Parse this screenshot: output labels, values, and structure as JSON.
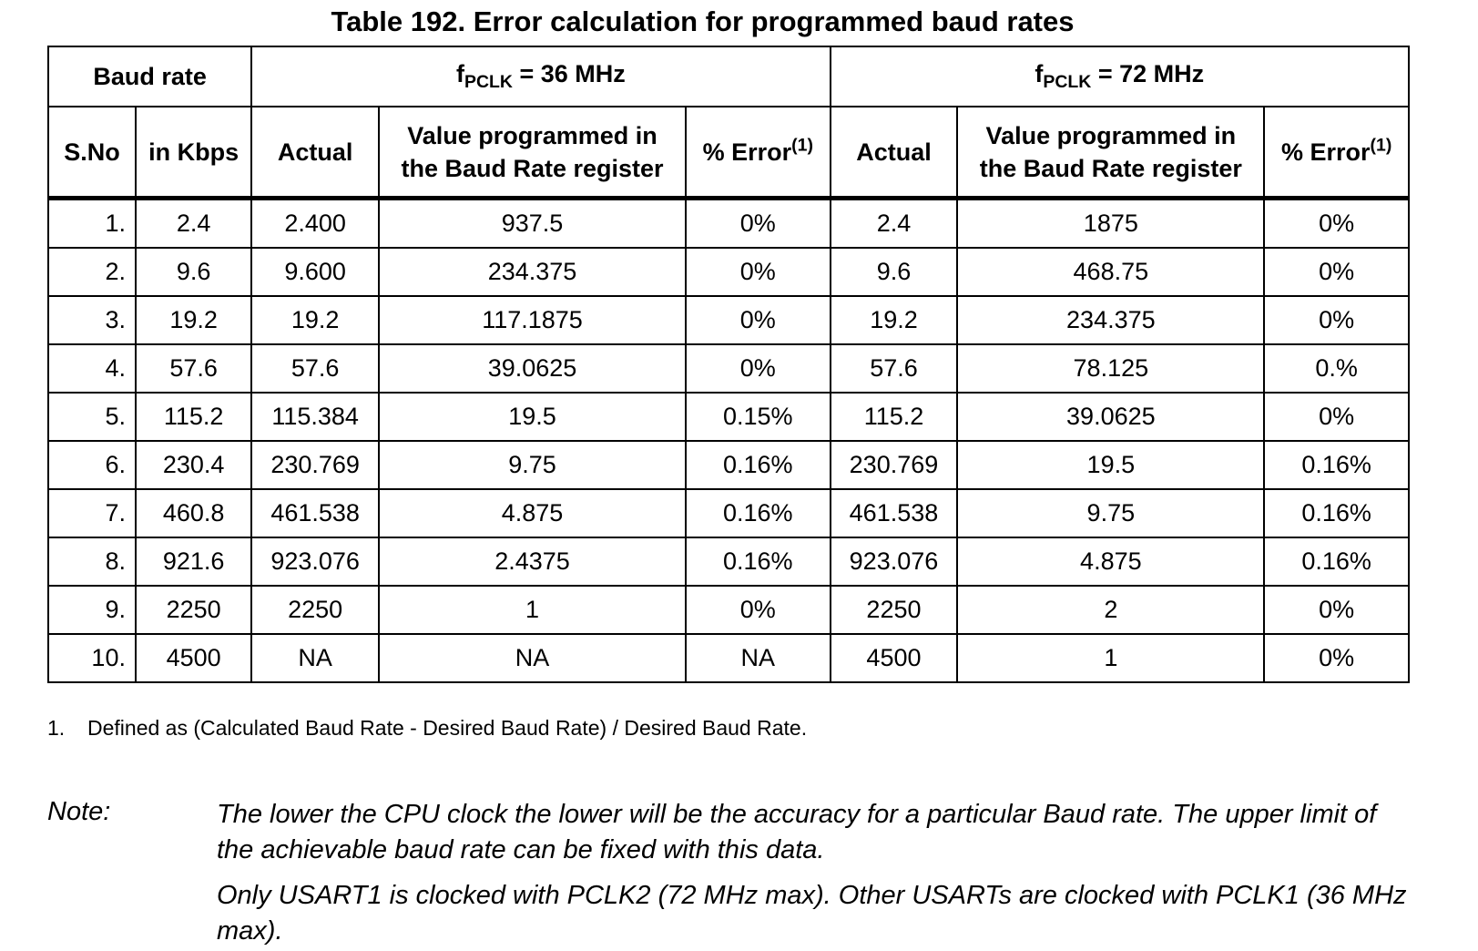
{
  "caption": "Table 192. Error calculation for programmed baud rates",
  "header": {
    "baud_rate": "Baud rate",
    "group1": {
      "prefix": "f",
      "sub": "PCLK",
      "suffix": " = 36 MHz"
    },
    "group2": {
      "prefix": "f",
      "sub": "PCLK",
      "suffix": " = 72 MHz"
    },
    "sno": "S.No",
    "in_kbps": "in Kbps",
    "actual": "Actual",
    "value_line1": "Value programmed in",
    "value_line2": "the Baud Rate register",
    "error_label": "% Error",
    "error_note": "(1)"
  },
  "rows": [
    {
      "sno": "1.",
      "kbps": "2.4",
      "a36": "2.400",
      "v36": "937.5",
      "e36": "0%",
      "a72": "2.4",
      "v72": "1875",
      "e72": "0%"
    },
    {
      "sno": "2.",
      "kbps": "9.6",
      "a36": "9.600",
      "v36": "234.375",
      "e36": "0%",
      "a72": "9.6",
      "v72": "468.75",
      "e72": "0%"
    },
    {
      "sno": "3.",
      "kbps": "19.2",
      "a36": "19.2",
      "v36": "117.1875",
      "e36": "0%",
      "a72": "19.2",
      "v72": "234.375",
      "e72": "0%"
    },
    {
      "sno": "4.",
      "kbps": "57.6",
      "a36": "57.6",
      "v36": "39.0625",
      "e36": "0%",
      "a72": "57.6",
      "v72": "78.125",
      "e72": "0.%"
    },
    {
      "sno": "5.",
      "kbps": "115.2",
      "a36": "115.384",
      "v36": "19.5",
      "e36": "0.15%",
      "a72": "115.2",
      "v72": "39.0625",
      "e72": "0%"
    },
    {
      "sno": "6.",
      "kbps": "230.4",
      "a36": "230.769",
      "v36": "9.75",
      "e36": "0.16%",
      "a72": "230.769",
      "v72": "19.5",
      "e72": "0.16%"
    },
    {
      "sno": "7.",
      "kbps": "460.8",
      "a36": "461.538",
      "v36": "4.875",
      "e36": "0.16%",
      "a72": "461.538",
      "v72": "9.75",
      "e72": "0.16%"
    },
    {
      "sno": "8.",
      "kbps": "921.6",
      "a36": "923.076",
      "v36": "2.4375",
      "e36": "0.16%",
      "a72": "923.076",
      "v72": "4.875",
      "e72": "0.16%"
    },
    {
      "sno": "9.",
      "kbps": "2250",
      "a36": "2250",
      "v36": "1",
      "e36": "0%",
      "a72": "2250",
      "v72": "2",
      "e72": "0%"
    },
    {
      "sno": "10.",
      "kbps": "4500",
      "a36": "NA",
      "v36": "NA",
      "e36": "NA",
      "a72": "4500",
      "v72": "1",
      "e72": "0%"
    }
  ],
  "footnote": {
    "number": "1.",
    "text": "Defined as (Calculated Baud Rate - Desired Baud Rate) / Desired Baud Rate."
  },
  "note": {
    "label": "Note:",
    "p1": "The lower the CPU clock the lower will be the accuracy for a particular Baud rate. The upper limit of the achievable baud rate can be fixed with this data.",
    "p2": "Only USART1 is clocked with PCLK2 (72 MHz max). Other USARTs are clocked with PCLK1 (36 MHz max)."
  }
}
